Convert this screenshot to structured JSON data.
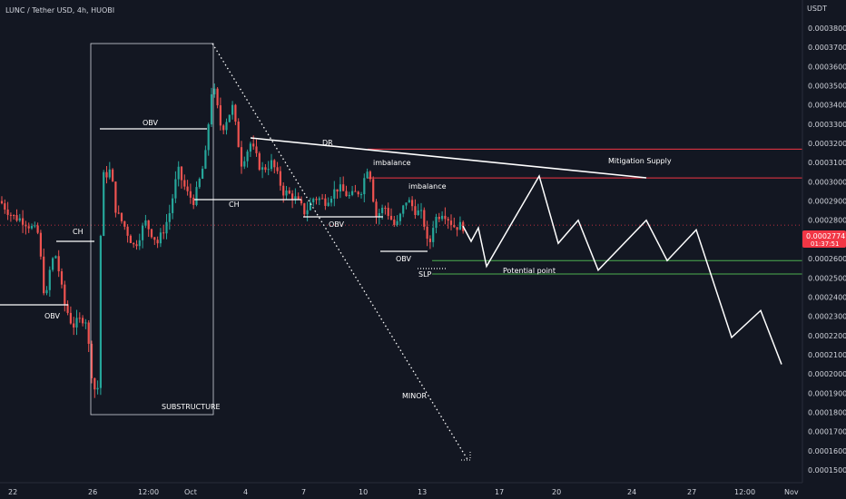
{
  "header": {
    "symbol_line": "LUNC / Tether USD, 4h, HUOBI"
  },
  "price_axis": {
    "currency_label": "USDT"
  },
  "last_price": {
    "value": "0.00027747",
    "countdown": "01:37:51",
    "color": "#f23645"
  },
  "colors": {
    "background": "#131722",
    "up": "#26a69a",
    "down": "#ef5350",
    "lines": "#ffffff",
    "zones": "#f23645",
    "potential": "#4caf50"
  },
  "annotations": {
    "obv1": "OBV",
    "obv2": "OBV",
    "obv3": "OBV",
    "obv4": "OBV",
    "ch1": "CH",
    "ch2": "CH",
    "dr": "DR",
    "imbalance1": "imbalance",
    "imbalance2": "imbalance",
    "mitigation": "Mitigation Supply",
    "potential": "Potential point",
    "slp": "SLP",
    "minor": "MINOR",
    "substructure": "SUBSTRUCTURE"
  },
  "chart_data": {
    "type": "candlestick",
    "title": "LUNC / Tether USD, 4h, HUOBI",
    "y_unit": "USDT",
    "ylim": [
      0.000145,
      0.000395
    ],
    "y_ticks": [
      "0.00038000",
      "0.00037000",
      "0.00036000",
      "0.00035000",
      "0.00034000",
      "0.00033000",
      "0.00032000",
      "0.00031000",
      "0.00030000",
      "0.00029000",
      "0.00028000",
      "0.00027000",
      "0.00026000",
      "0.00025000",
      "0.00024000",
      "0.00023000",
      "0.00022000",
      "0.00021000",
      "0.00020000",
      "0.00019000",
      "0.00018000",
      "0.00017000",
      "0.00016000",
      "0.00015000"
    ],
    "x_ticks": [
      "22",
      "26",
      "12:00",
      "Oct",
      "4",
      "7",
      "10",
      "13",
      "17",
      "20",
      "24",
      "27",
      "12:00",
      "Nov"
    ],
    "grid": false,
    "last_price": 0.00027747,
    "projection_path": [
      0.000277,
      0.000269,
      0.000276,
      0.000256,
      0.000303,
      0.000268,
      0.00028,
      0.000254,
      0.00028,
      0.000259,
      0.000275,
      0.000219,
      0.000233,
      0.000205
    ],
    "zones": {
      "mitigation_supply": [
        0.000302,
        0.000317
      ],
      "potential_point": [
        0.000252,
        0.000259
      ]
    }
  }
}
